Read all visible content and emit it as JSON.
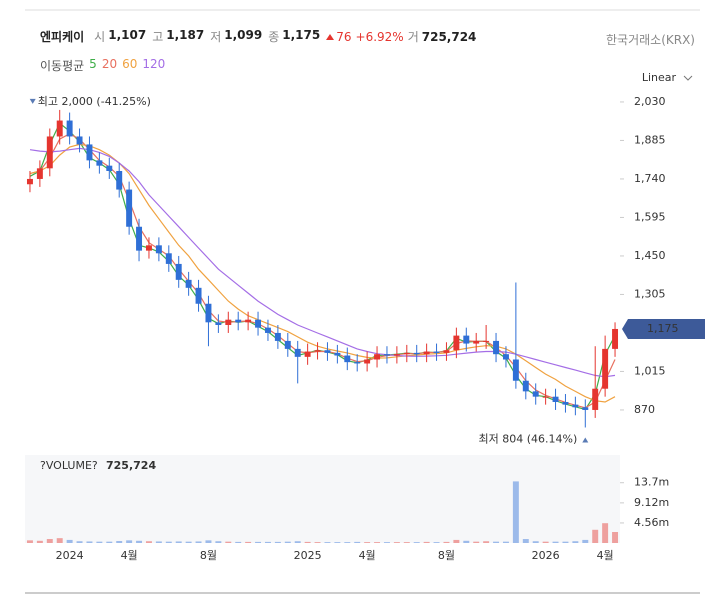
{
  "chart_data": {
    "type": "candlestick",
    "header": {
      "name": "엔피케이",
      "items": [
        {
          "label": "시",
          "value": "1,107"
        },
        {
          "label": "고",
          "value": "1,187"
        },
        {
          "label": "저",
          "value": "1,099"
        },
        {
          "label": "종",
          "value": "1,175"
        }
      ],
      "change": "76",
      "change_pct": "+6.92%",
      "volume_label": "거",
      "volume": "725,724",
      "exchange": "한국거래소(KRX)"
    },
    "ma_title": "이동평균",
    "scale": "Linear",
    "categories": [
      null,
      null,
      null,
      null,
      "2024",
      null,
      null,
      null,
      null,
      null,
      "4월",
      null,
      null,
      null,
      null,
      null,
      null,
      null,
      "8월",
      null,
      null,
      null,
      null,
      null,
      null,
      null,
      null,
      null,
      "2025",
      null,
      null,
      null,
      null,
      null,
      "4월",
      null,
      null,
      null,
      null,
      null,
      null,
      null,
      "8월",
      null,
      null,
      null,
      null,
      null,
      null,
      null,
      null,
      null,
      "2026",
      null,
      null,
      null,
      null,
      null,
      "4월",
      null
    ],
    "open": [
      1720,
      1740,
      1780,
      1900,
      1960,
      1900,
      1870,
      1810,
      1790,
      1770,
      1700,
      1560,
      1470,
      1490,
      1460,
      1420,
      1360,
      1330,
      1270,
      1200,
      1190,
      1210,
      1200,
      1210,
      1180,
      1160,
      1130,
      1100,
      1070,
      1090,
      1095,
      1085,
      1075,
      1050,
      1045,
      1060,
      1080,
      1075,
      1080,
      1085,
      1080,
      1090,
      1085,
      1095,
      1150,
      1120,
      1130,
      1130,
      1080,
      1060,
      980,
      940,
      920,
      920,
      900,
      890,
      880,
      870,
      950,
      1100
    ],
    "high": [
      1770,
      1810,
      1930,
      2000,
      1990,
      1930,
      1900,
      1840,
      1820,
      1800,
      1730,
      1590,
      1520,
      1520,
      1490,
      1450,
      1390,
      1360,
      1300,
      1230,
      1240,
      1240,
      1240,
      1240,
      1210,
      1190,
      1160,
      1130,
      1120,
      1125,
      1125,
      1115,
      1105,
      1080,
      1090,
      1110,
      1110,
      1110,
      1115,
      1115,
      1120,
      1120,
      1125,
      1180,
      1180,
      1160,
      1190,
      1160,
      1110,
      1350,
      1010,
      970,
      950,
      950,
      930,
      920,
      910,
      1110,
      1150,
      1200
    ],
    "low": [
      1690,
      1710,
      1750,
      1870,
      1870,
      1840,
      1780,
      1760,
      1740,
      1670,
      1530,
      1430,
      1440,
      1430,
      1390,
      1330,
      1300,
      1240,
      1110,
      1160,
      1160,
      1170,
      1170,
      1150,
      1130,
      1100,
      1070,
      970,
      1040,
      1060,
      1055,
      1045,
      1020,
      1015,
      1015,
      1030,
      1045,
      1045,
      1050,
      1050,
      1050,
      1055,
      1055,
      1065,
      1090,
      1090,
      1100,
      1050,
      1030,
      950,
      910,
      890,
      890,
      870,
      860,
      850,
      804,
      840,
      920,
      1070
    ],
    "close": [
      1740,
      1780,
      1900,
      1960,
      1900,
      1870,
      1810,
      1790,
      1770,
      1700,
      1560,
      1470,
      1490,
      1460,
      1420,
      1360,
      1330,
      1270,
      1200,
      1190,
      1210,
      1200,
      1210,
      1180,
      1160,
      1130,
      1100,
      1070,
      1090,
      1095,
      1085,
      1075,
      1050,
      1045,
      1060,
      1080,
      1075,
      1080,
      1085,
      1080,
      1090,
      1085,
      1095,
      1150,
      1120,
      1130,
      1130,
      1080,
      1060,
      980,
      940,
      920,
      920,
      900,
      890,
      880,
      870,
      950,
      1100,
      1175
    ],
    "up_color": "#e5352f",
    "down_color": "#2f6fd6",
    "moving_averages": [
      {
        "name": "5",
        "color": "#3fae49",
        "values": [
          1750,
          1770,
          1870,
          1950,
          1920,
          1880,
          1820,
          1800,
          1775,
          1720,
          1590,
          1490,
          1480,
          1465,
          1430,
          1375,
          1340,
          1285,
          1215,
          1195,
          1205,
          1200,
          1205,
          1185,
          1165,
          1135,
          1105,
          1075,
          1085,
          1095,
          1088,
          1078,
          1055,
          1048,
          1058,
          1075,
          1077,
          1080,
          1084,
          1081,
          1088,
          1086,
          1093,
          1140,
          1125,
          1128,
          1128,
          1090,
          1065,
          1000,
          950,
          925,
          920,
          905,
          892,
          882,
          872,
          930,
          1080,
          1150
        ]
      },
      {
        "name": "20",
        "color": "#e8705f",
        "values": [
          1760,
          1770,
          1820,
          1890,
          1910,
          1890,
          1850,
          1810,
          1785,
          1750,
          1660,
          1560,
          1500,
          1475,
          1450,
          1400,
          1355,
          1310,
          1245,
          1205,
          1200,
          1203,
          1205,
          1195,
          1175,
          1150,
          1120,
          1090,
          1085,
          1090,
          1090,
          1082,
          1065,
          1052,
          1055,
          1068,
          1075,
          1078,
          1082,
          1082,
          1086,
          1087,
          1091,
          1120,
          1130,
          1128,
          1129,
          1105,
          1075,
          1030,
          980,
          945,
          925,
          912,
          898,
          888,
          878,
          900,
          980,
          1060
        ]
      },
      {
        "name": "60",
        "color": "#f0a240",
        "values": [
          1760,
          1770,
          1790,
          1830,
          1860,
          1870,
          1865,
          1850,
          1830,
          1800,
          1760,
          1700,
          1640,
          1590,
          1540,
          1490,
          1450,
          1400,
          1360,
          1320,
          1280,
          1250,
          1225,
          1210,
          1195,
          1180,
          1165,
          1145,
          1125,
          1110,
          1100,
          1092,
          1085,
          1075,
          1068,
          1065,
          1066,
          1070,
          1074,
          1077,
          1080,
          1082,
          1085,
          1095,
          1102,
          1108,
          1112,
          1110,
          1100,
          1080,
          1055,
          1030,
          1005,
          985,
          960,
          940,
          920,
          905,
          900,
          920
        ]
      },
      {
        "name": "120",
        "color": "#a46ee6",
        "values": [
          1850,
          1845,
          1842,
          1845,
          1850,
          1855,
          1850,
          1840,
          1825,
          1800,
          1770,
          1730,
          1680,
          1640,
          1600,
          1560,
          1520,
          1480,
          1440,
          1400,
          1370,
          1340,
          1310,
          1280,
          1255,
          1230,
          1210,
          1190,
          1175,
          1160,
          1145,
          1130,
          1115,
          1100,
          1090,
          1082,
          1078,
          1075,
          1073,
          1072,
          1073,
          1074,
          1076,
          1080,
          1084,
          1088,
          1090,
          1090,
          1088,
          1080,
          1070,
          1060,
          1050,
          1040,
          1030,
          1020,
          1010,
          1000,
          995,
          1000
        ]
      }
    ],
    "ylim": [
      738,
      2075
    ],
    "yticks": [
      {
        "value": 2030,
        "label": "2,030"
      },
      {
        "value": 1885,
        "label": "1,885"
      },
      {
        "value": 1740,
        "label": "1,740"
      },
      {
        "value": 1595,
        "label": "1,595"
      },
      {
        "value": 1450,
        "label": "1,450"
      },
      {
        "value": 1305,
        "label": "1,305"
      },
      {
        "value": 1015,
        "label": "1,015"
      },
      870
    ],
    "max_label": "최고 2,000 (-41.25%)",
    "min_label": "최저 804 (46.14%)",
    "last_label": "1,175",
    "volume": {
      "title": "?VOLUME?",
      "last": "725,724",
      "values": [
        600000,
        500000,
        900000,
        1100000,
        700000,
        400000,
        350000,
        300000,
        300000,
        450000,
        600000,
        500000,
        400000,
        350000,
        300000,
        350000,
        300000,
        350000,
        600000,
        400000,
        300000,
        250000,
        250000,
        250000,
        250000,
        250000,
        300000,
        400000,
        250000,
        200000,
        200000,
        200000,
        200000,
        250000,
        200000,
        200000,
        200000,
        200000,
        200000,
        200000,
        250000,
        200000,
        250000,
        700000,
        500000,
        300000,
        400000,
        300000,
        300000,
        14000000,
        900000,
        400000,
        300000,
        300000,
        300000,
        400000,
        700000,
        3000000,
        4500000,
        2500000
      ],
      "ylim": [
        0,
        20000000
      ],
      "yticks": [
        {
          "value": 13700000,
          "label": "13.7m"
        },
        {
          "value": 9120000,
          "label": "9.12m"
        },
        {
          "value": 4560000,
          "label": "4.56m"
        }
      ]
    }
  }
}
